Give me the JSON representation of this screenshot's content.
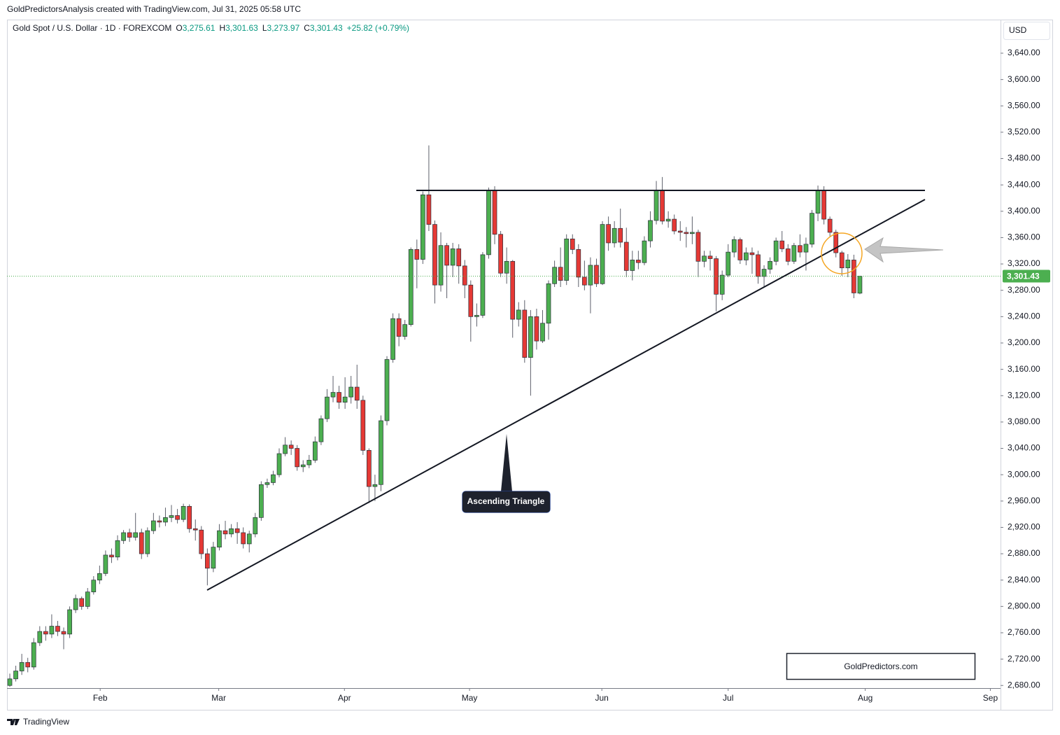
{
  "header": {
    "created": "GoldPredictorsAnalysis created with TradingView.com, Jul 31, 2025 05:58 UTC"
  },
  "chart_data": {
    "type": "candlestick",
    "title": "Gold Spot / U.S. Dollar · 1D · FOREXCOM",
    "legend": [
      {
        "key": "O",
        "value": "3,275.61"
      },
      {
        "key": "H",
        "value": "3,301.63"
      },
      {
        "key": "L",
        "value": "3,273.97"
      },
      {
        "key": "C",
        "value": "3,301.43"
      }
    ],
    "change": "+25.82 (+0.79%)",
    "currency": "USD",
    "up_color": "#4caf50",
    "down_color": "#e53935",
    "open": [
      2680,
      2690,
      2702,
      2715,
      2708,
      2745,
      2762,
      2758,
      2770,
      2762,
      2758,
      2795,
      2812,
      2800,
      2822,
      2840,
      2850,
      2878,
      2875,
      2900,
      2912,
      2905,
      2912,
      2880,
      2915,
      2930,
      2928,
      2935,
      2938,
      2932,
      2952,
      2918,
      2916,
      2880,
      2858,
      2890,
      2915,
      2910,
      2918,
      2912,
      2895,
      2910,
      2935,
      2985,
      2988,
      3000,
      3032,
      3045,
      3040,
      3012,
      3015,
      3022,
      3050,
      3085,
      3118,
      3125,
      3110,
      3118,
      3133,
      3113,
      3037,
      2982,
      2985,
      3082,
      3175,
      3237,
      3210,
      3228,
      3342,
      3327,
      3425,
      3380,
      3288,
      3348,
      3318,
      3343,
      3317,
      3288,
      3240,
      3242,
      3334,
      3432,
      3365,
      3306,
      3324,
      3236,
      3250,
      3178,
      3240,
      3203,
      3230,
      3290,
      3315,
      3295,
      3358,
      3342,
      3300,
      3288,
      3318,
      3290,
      3380,
      3352,
      3374,
      3353,
      3310,
      3326,
      3322,
      3355,
      3386,
      3432,
      3385,
      3388,
      3370,
      3368,
      3366,
      3368,
      3324,
      3332,
      3328,
      3274,
      3303,
      3338,
      3357,
      3326,
      3337,
      3334,
      3301,
      3312,
      3324,
      3355,
      3343,
      3324,
      3348,
      3338,
      3350,
      3397,
      3432,
      3388,
      3368,
      3337,
      3314,
      3326,
      3275.61
    ],
    "high": [
      2698,
      2710,
      2728,
      2722,
      2752,
      2770,
      2770,
      2788,
      2778,
      2768,
      2800,
      2818,
      2815,
      2828,
      2846,
      2862,
      2885,
      2888,
      2908,
      2916,
      2918,
      2942,
      2918,
      2920,
      2942,
      2938,
      2950,
      2954,
      2948,
      2956,
      2955,
      2932,
      2922,
      2888,
      2898,
      2925,
      2930,
      2925,
      2928,
      2920,
      2915,
      2942,
      2990,
      2994,
      3006,
      3040,
      3057,
      3052,
      3045,
      3022,
      3030,
      3058,
      3090,
      3130,
      3150,
      3135,
      3148,
      3150,
      3167,
      3120,
      3040,
      3000,
      3090,
      3180,
      3245,
      3245,
      3235,
      3345,
      3357,
      3430,
      3500,
      3386,
      3368,
      3352,
      3352,
      3350,
      3326,
      3295,
      3260,
      3338,
      3436,
      3438,
      3370,
      3345,
      3326,
      3262,
      3265,
      3250,
      3252,
      3250,
      3295,
      3325,
      3345,
      3365,
      3365,
      3350,
      3325,
      3330,
      3328,
      3385,
      3392,
      3385,
      3404,
      3375,
      3340,
      3340,
      3362,
      3400,
      3446,
      3452,
      3400,
      3395,
      3385,
      3376,
      3392,
      3372,
      3340,
      3340,
      3332,
      3310,
      3350,
      3362,
      3360,
      3345,
      3345,
      3340,
      3318,
      3330,
      3360,
      3370,
      3350,
      3352,
      3365,
      3360,
      3402,
      3439,
      3438,
      3392,
      3372,
      3340,
      3335,
      3334,
      3301.63
    ],
    "low": [
      2678,
      2686,
      2696,
      2700,
      2704,
      2740,
      2748,
      2752,
      2755,
      2735,
      2752,
      2790,
      2795,
      2796,
      2818,
      2834,
      2846,
      2866,
      2870,
      2895,
      2898,
      2900,
      2872,
      2875,
      2910,
      2920,
      2922,
      2928,
      2926,
      2928,
      2912,
      2900,
      2872,
      2832,
      2852,
      2885,
      2902,
      2905,
      2895,
      2888,
      2882,
      2905,
      2930,
      2980,
      2984,
      2996,
      3028,
      3030,
      3006,
      3004,
      3010,
      3018,
      3045,
      3080,
      3110,
      3100,
      3100,
      3108,
      3100,
      3030,
      2957,
      2960,
      2975,
      3075,
      3170,
      3195,
      3205,
      3225,
      3283,
      3320,
      3370,
      3260,
      3278,
      3268,
      3300,
      3290,
      3268,
      3202,
      3225,
      3238,
      3328,
      3350,
      3300,
      3290,
      3208,
      3225,
      3170,
      3120,
      3190,
      3200,
      3205,
      3285,
      3285,
      3288,
      3335,
      3285,
      3280,
      3245,
      3285,
      3288,
      3340,
      3345,
      3345,
      3300,
      3295,
      3312,
      3318,
      3345,
      3380,
      3380,
      3375,
      3365,
      3355,
      3345,
      3350,
      3300,
      3315,
      3310,
      3248,
      3265,
      3300,
      3330,
      3320,
      3318,
      3305,
      3290,
      3285,
      3305,
      3318,
      3338,
      3318,
      3320,
      3330,
      3310,
      3345,
      3385,
      3380,
      3362,
      3330,
      3302,
      3300,
      3268,
      3273.97
    ],
    "close": [
      2690,
      2702,
      2715,
      2708,
      2745,
      2762,
      2758,
      2770,
      2762,
      2758,
      2795,
      2812,
      2800,
      2822,
      2840,
      2850,
      2878,
      2875,
      2900,
      2912,
      2905,
      2912,
      2880,
      2915,
      2930,
      2928,
      2935,
      2938,
      2932,
      2952,
      2918,
      2916,
      2880,
      2858,
      2890,
      2915,
      2910,
      2918,
      2912,
      2895,
      2910,
      2935,
      2985,
      2988,
      3000,
      3032,
      3045,
      3040,
      3012,
      3015,
      3022,
      3050,
      3085,
      3118,
      3125,
      3110,
      3118,
      3133,
      3113,
      3037,
      2982,
      2985,
      3082,
      3175,
      3237,
      3210,
      3228,
      3342,
      3327,
      3425,
      3380,
      3288,
      3348,
      3318,
      3343,
      3317,
      3288,
      3240,
      3242,
      3334,
      3432,
      3365,
      3306,
      3324,
      3236,
      3250,
      3178,
      3240,
      3203,
      3230,
      3290,
      3315,
      3295,
      3358,
      3342,
      3300,
      3288,
      3318,
      3290,
      3380,
      3352,
      3374,
      3353,
      3310,
      3326,
      3322,
      3355,
      3386,
      3432,
      3385,
      3388,
      3370,
      3368,
      3366,
      3368,
      3324,
      3332,
      3328,
      3274,
      3303,
      3338,
      3357,
      3326,
      3337,
      3334,
      3301,
      3312,
      3324,
      3355,
      3343,
      3324,
      3348,
      3338,
      3350,
      3397,
      3432,
      3388,
      3368,
      3337,
      3314,
      3326,
      3276,
      3301.43
    ],
    "xlim": [
      -0.47,
      165.5
    ],
    "xticks": [
      {
        "value": 15.1,
        "label": "Feb"
      },
      {
        "value": 34.9,
        "label": "Mar"
      },
      {
        "value": 55.9,
        "label": "Apr"
      },
      {
        "value": 76.8,
        "label": "May"
      },
      {
        "value": 98.9,
        "label": "Jun"
      },
      {
        "value": 120.0,
        "label": "Jul"
      },
      {
        "value": 142.9,
        "label": "Aug"
      },
      {
        "value": 163.8,
        "label": "Sep"
      }
    ],
    "ylim": [
      2676,
      3691
    ],
    "yticks": [
      {
        "value": 2680,
        "label": "2,680.00"
      },
      {
        "value": 2720,
        "label": "2,720.00"
      },
      {
        "value": 2760,
        "label": "2,760.00"
      },
      {
        "value": 2800,
        "label": "2,800.00"
      },
      {
        "value": 2840,
        "label": "2,840.00"
      },
      {
        "value": 2880,
        "label": "2,880.00"
      },
      {
        "value": 2920,
        "label": "2,920.00"
      },
      {
        "value": 2960,
        "label": "2,960.00"
      },
      {
        "value": 3000,
        "label": "3,000.00"
      },
      {
        "value": 3040,
        "label": "3,040.00"
      },
      {
        "value": 3080,
        "label": "3,080.00"
      },
      {
        "value": 3120,
        "label": "3,120.00"
      },
      {
        "value": 3160,
        "label": "3,160.00"
      },
      {
        "value": 3200,
        "label": "3,200.00"
      },
      {
        "value": 3240,
        "label": "3,240.00"
      },
      {
        "value": 3280,
        "label": "3,280.00"
      },
      {
        "value": 3320,
        "label": "3,320.00"
      },
      {
        "value": 3360,
        "label": "3,360.00"
      },
      {
        "value": 3400,
        "label": "3,400.00"
      },
      {
        "value": 3440,
        "label": "3,440.00"
      },
      {
        "value": 3480,
        "label": "3,480.00"
      },
      {
        "value": 3520,
        "label": "3,520.00"
      },
      {
        "value": 3560,
        "label": "3,560.00"
      },
      {
        "value": 3600,
        "label": "3,600.00"
      },
      {
        "value": 3640,
        "label": "3,640.00"
      }
    ],
    "grid": false,
    "price_marker": {
      "value": 3301.43,
      "label": "3,301.43",
      "color": "#4caf50"
    },
    "annotation": "Ascending Triangle",
    "watermark": "GoldPredictors.com"
  },
  "footer": {
    "brand": "TradingView"
  }
}
